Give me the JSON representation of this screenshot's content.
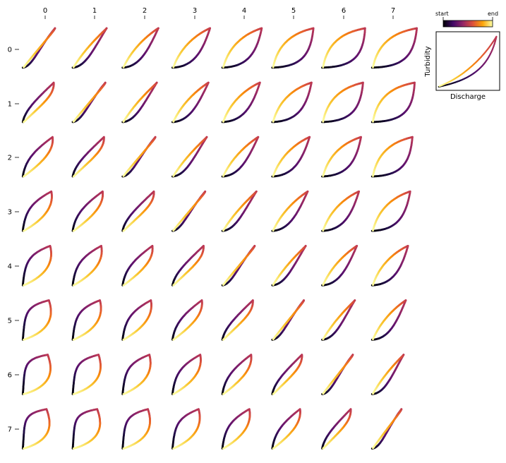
{
  "chart_data": {
    "type": "line",
    "grid": "8x8 small-multiple hysteresis loops",
    "column_ticks": [
      "0",
      "1",
      "2",
      "3",
      "4",
      "5",
      "6",
      "7"
    ],
    "row_ticks": [
      "0",
      "1",
      "2",
      "3",
      "4",
      "5",
      "6",
      "7"
    ],
    "colorbar": {
      "start_label": "start",
      "end_label": "end",
      "colormap": "inferno"
    },
    "inset": {
      "xlabel": "Discharge",
      "ylabel": "Turbidity"
    }
  }
}
